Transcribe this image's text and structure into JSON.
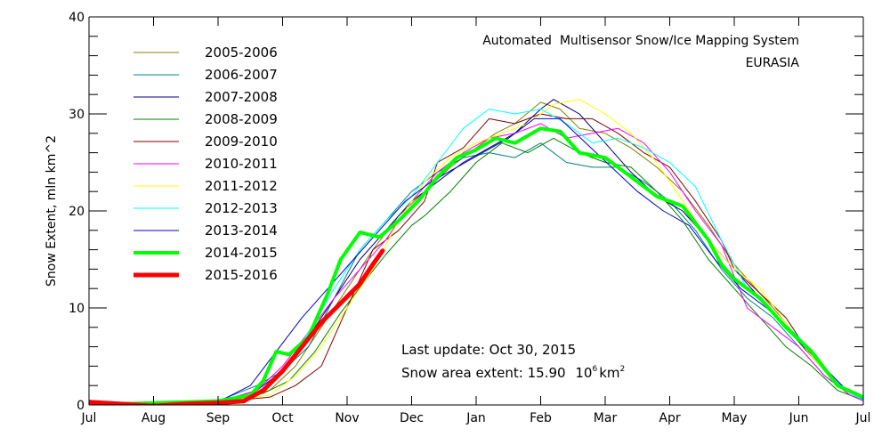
{
  "chart_data": {
    "type": "line",
    "title": "Automated  Multisensor Snow/Ice Mapping System",
    "subtitle": "EURASIA",
    "xlabel": "",
    "ylabel": "Snow Extent, mln km^2",
    "ylim": [
      0,
      40
    ],
    "yticks": [
      0,
      10,
      20,
      30,
      40
    ],
    "y_minor_step": 2,
    "xlim": [
      0,
      12
    ],
    "xtick_labels": [
      "Jul",
      "Aug",
      "Sep",
      "Oct",
      "Nov",
      "Dec",
      "Jan",
      "Feb",
      "Mar",
      "Apr",
      "May",
      "Jun",
      "Jul"
    ],
    "x_units": "months since Jul 1",
    "grid": false,
    "legend_position": "top-left",
    "annotations": {
      "last_update": "Last update: Oct 30, 2015",
      "extent_label": "Snow area extent: 15.90",
      "extent_units_base": "10",
      "extent_units_exp": "6",
      "extent_units_km": "km",
      "extent_units_sq": "2"
    },
    "series": [
      {
        "name": "2005-2006",
        "color": "#808000",
        "width": 1,
        "x": [
          0,
          1,
          2,
          2.8,
          3.2,
          3.6,
          4,
          4.4,
          4.8,
          5.2,
          5.6,
          6,
          6.3,
          6.6,
          7,
          7.3,
          7.6,
          8,
          8.4,
          8.8,
          9.2,
          9.6,
          10,
          10.4,
          10.8,
          11.2,
          11.6,
          12
        ],
        "y": [
          0.3,
          0.2,
          0.3,
          1.5,
          4,
          8,
          12,
          16,
          19.5,
          22,
          24.5,
          26.5,
          28,
          29,
          31.2,
          30.5,
          28.5,
          28,
          26.5,
          24.5,
          22,
          18.5,
          14.5,
          11.5,
          8.5,
          5,
          2.2,
          0.6
        ]
      },
      {
        "name": "2006-2007",
        "color": "#008080",
        "width": 1,
        "x": [
          0,
          1,
          2,
          2.6,
          3,
          3.4,
          3.8,
          4.2,
          4.6,
          5,
          5.4,
          5.8,
          6.2,
          6.6,
          7,
          7.4,
          7.8,
          8.2,
          8.6,
          9,
          9.4,
          9.8,
          10.2,
          10.6,
          11,
          11.4,
          11.8,
          12
        ],
        "y": [
          0.3,
          0.2,
          0.4,
          2,
          3.5,
          6,
          11,
          16,
          19,
          22,
          24,
          25.5,
          26,
          25.5,
          27,
          25,
          24.5,
          24.5,
          23,
          21,
          18,
          14,
          11,
          9,
          6,
          3,
          1,
          0.5
        ]
      },
      {
        "name": "2007-2008",
        "color": "#000080",
        "width": 1,
        "x": [
          0,
          1,
          2,
          2.6,
          3,
          3.4,
          3.8,
          4.2,
          4.6,
          5,
          5.4,
          5.8,
          6.2,
          6.6,
          7,
          7.2,
          7.6,
          8,
          8.4,
          8.8,
          9.2,
          9.6,
          10,
          10.4,
          10.8,
          11.2,
          11.6,
          12
        ],
        "y": [
          0.3,
          0.2,
          0.3,
          1.5,
          3.5,
          7,
          11,
          15,
          18,
          21,
          23,
          25,
          26.5,
          28,
          30.5,
          31.5,
          30,
          27,
          24,
          21.5,
          20,
          17,
          14,
          11,
          8,
          5,
          2,
          0.6
        ]
      },
      {
        "name": "2008-2009",
        "color": "#008000",
        "width": 1,
        "x": [
          0,
          1,
          2,
          2.7,
          3.1,
          3.5,
          3.9,
          4.3,
          4.6,
          5,
          5.2,
          5.6,
          6,
          6.4,
          6.8,
          7.2,
          7.6,
          8,
          8.4,
          8.8,
          9.2,
          9.6,
          10,
          10.4,
          10.8,
          11.2,
          11.6,
          12
        ],
        "y": [
          0.3,
          0.2,
          0.3,
          1.2,
          2.5,
          5.5,
          9.5,
          13,
          15.5,
          18.5,
          19.5,
          22,
          25,
          27,
          26,
          27.5,
          26,
          25,
          24.5,
          22,
          19,
          15,
          12,
          9,
          6,
          4,
          1.5,
          0.5
        ]
      },
      {
        "name": "2009-2010",
        "color": "#800000",
        "width": 1,
        "x": [
          0,
          1,
          2,
          2.8,
          3.2,
          3.6,
          4,
          4.4,
          4.8,
          5.2,
          5.4,
          5.8,
          6.2,
          6.6,
          7,
          7.4,
          7.8,
          8.2,
          8.6,
          9,
          9.4,
          9.8,
          10,
          10.4,
          10.8,
          11.2,
          11.6,
          12
        ],
        "y": [
          0.3,
          0.2,
          0.3,
          0.8,
          2,
          4,
          10,
          16,
          18,
          21,
          25,
          26.5,
          29.5,
          29,
          30,
          29.5,
          29.5,
          28,
          26,
          24.5,
          21,
          17,
          14,
          11.5,
          9,
          5,
          2,
          0.6
        ]
      },
      {
        "name": "2010-2011",
        "color": "#ff00ff",
        "width": 1,
        "x": [
          0,
          1,
          2,
          2.6,
          3,
          3.4,
          3.8,
          4.2,
          4.6,
          5,
          5.4,
          5.8,
          6.2,
          6.6,
          7,
          7.4,
          7.8,
          8.2,
          8.6,
          9,
          9.4,
          9.8,
          10.2,
          10.6,
          11,
          11.4,
          11.8,
          12
        ],
        "y": [
          0.3,
          0.2,
          0.3,
          1.5,
          4,
          7.5,
          11,
          14,
          17,
          21,
          24,
          26,
          27.5,
          28,
          29,
          27.5,
          28,
          28.5,
          27,
          24,
          20,
          16.5,
          10,
          8,
          6,
          3,
          1,
          0.4
        ]
      },
      {
        "name": "2011-2012",
        "color": "#ffff00",
        "width": 1,
        "x": [
          0,
          1,
          2,
          2.8,
          3.2,
          3.6,
          4,
          4.4,
          4.8,
          5.2,
          5.6,
          6,
          6.4,
          6.8,
          7.2,
          7.6,
          8,
          8.4,
          8.8,
          9.2,
          9.6,
          10,
          10.4,
          10.8,
          11.2,
          11.6,
          12
        ],
        "y": [
          0.3,
          0.2,
          0.3,
          1,
          3,
          6,
          10,
          14,
          19,
          23,
          25.5,
          27,
          28,
          29,
          31,
          31.5,
          30,
          28,
          25,
          21,
          17,
          14,
          12,
          8.5,
          5,
          2,
          0.5
        ]
      },
      {
        "name": "2012-2013",
        "color": "#00ffff",
        "width": 1,
        "x": [
          0,
          1,
          2,
          2.6,
          3,
          3.4,
          3.8,
          4.2,
          4.6,
          5,
          5.4,
          5.8,
          6.2,
          6.6,
          7,
          7.4,
          7.8,
          8.2,
          8.6,
          9,
          9.4,
          9.8,
          10.2,
          10.6,
          11,
          11.4,
          11.8,
          12
        ],
        "y": [
          0.3,
          0.2,
          0.3,
          1.2,
          3.5,
          7.5,
          12,
          16,
          19,
          21.5,
          25,
          28.5,
          30.5,
          30,
          30.5,
          29,
          27,
          27.5,
          26.5,
          25,
          22.5,
          17,
          12,
          9.5,
          7,
          3.5,
          1.2,
          0.5
        ]
      },
      {
        "name": "2013-2014",
        "color": "#0000cd",
        "width": 1,
        "x": [
          0,
          1,
          2,
          2.5,
          2.9,
          3.3,
          3.7,
          4.1,
          4.5,
          4.9,
          5.3,
          5.7,
          6.1,
          6.5,
          6.9,
          7.3,
          7.7,
          8.1,
          8.5,
          8.9,
          9.3,
          9.7,
          10.1,
          10.5,
          10.9,
          11.3,
          11.7,
          12
        ],
        "y": [
          0.3,
          0.2,
          0.3,
          2,
          5.5,
          9,
          12,
          15,
          18,
          21,
          23,
          24.5,
          26,
          27.5,
          29.5,
          29.5,
          27,
          24.5,
          22,
          20,
          18.5,
          15,
          12,
          10,
          7.5,
          4.5,
          1.8,
          0.6
        ]
      },
      {
        "name": "2014-2015",
        "color": "#00ff00",
        "width": 4,
        "x": [
          0,
          0.5,
          1,
          1.5,
          2,
          2.5,
          2.7,
          2.9,
          3.1,
          3.4,
          3.7,
          3.9,
          4.2,
          4.5,
          4.8,
          5.1,
          5.4,
          5.7,
          6,
          6.3,
          6.6,
          7,
          7.3,
          7.6,
          8,
          8.4,
          8.8,
          9.2,
          9.6,
          9.8,
          10,
          10.4,
          10.8,
          11.2,
          11.6,
          12
        ],
        "y": [
          0.3,
          0.1,
          0.2,
          0.3,
          0.4,
          1,
          2.5,
          5.5,
          5.2,
          7,
          11.5,
          15,
          17.8,
          17.3,
          19,
          21,
          23.5,
          25.5,
          26.3,
          27.5,
          27,
          28.5,
          28.2,
          26,
          25.5,
          23.5,
          21.5,
          20.5,
          17,
          14.5,
          13,
          11,
          8,
          5.5,
          2,
          0.8
        ]
      },
      {
        "name": "2015-2016",
        "color": "#ff0000",
        "width": 5,
        "x": [
          0,
          0.5,
          1,
          1.5,
          2,
          2.4,
          2.7,
          3,
          3.3,
          3.6,
          3.9,
          4.2,
          4.4,
          4.55
        ],
        "y": [
          0.3,
          0.1,
          -0.1,
          0.1,
          0.2,
          0.4,
          1.5,
          3.5,
          6,
          8.5,
          10.5,
          12.5,
          14.5,
          15.9
        ]
      }
    ]
  }
}
